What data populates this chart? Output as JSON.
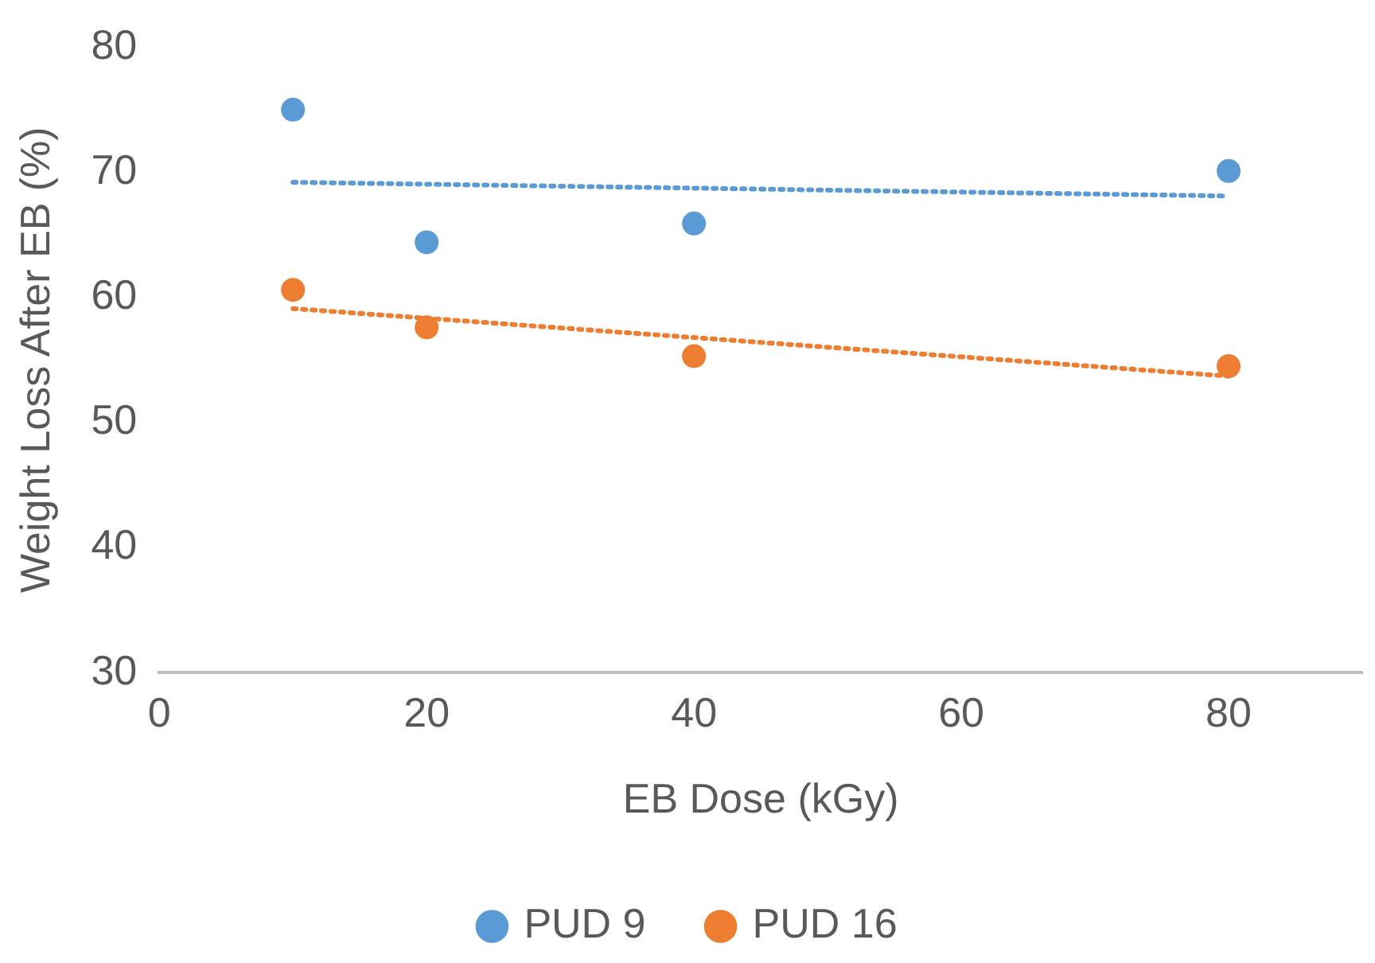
{
  "chart_data": {
    "type": "scatter",
    "xlabel": "EB Dose (kGy)",
    "ylabel": "Weight Loss After EB (%)",
    "xlim": [
      0,
      90
    ],
    "xticks": [
      0,
      20,
      40,
      60,
      80
    ],
    "ylim": [
      30,
      80
    ],
    "yticks": [
      30,
      40,
      50,
      60,
      70,
      80
    ],
    "grid": false,
    "legend": "bottom",
    "marker": "circle",
    "series": [
      {
        "name": "PUD 9",
        "color": "#5b9bd5",
        "x": [
          10,
          20,
          40,
          80
        ],
        "values": [
          75,
          64.4,
          65.9,
          70.1
        ]
      },
      {
        "name": "PUD 16",
        "color": "#ed7d31",
        "x": [
          10,
          20,
          40,
          80
        ],
        "values": [
          60.6,
          57.6,
          55.3,
          54.5
        ]
      },
      {
        "type": "line",
        "marker": "none",
        "color": "#5b9bd5",
        "line_style": "dotted",
        "x": [
          10,
          80
        ],
        "values": [
          69.2,
          68.1
        ]
      },
      {
        "type": "line",
        "marker": "none",
        "color": "#ed7d31",
        "line_style": "dotted",
        "x": [
          10,
          80
        ],
        "values": [
          59.1,
          53.7
        ]
      }
    ]
  }
}
